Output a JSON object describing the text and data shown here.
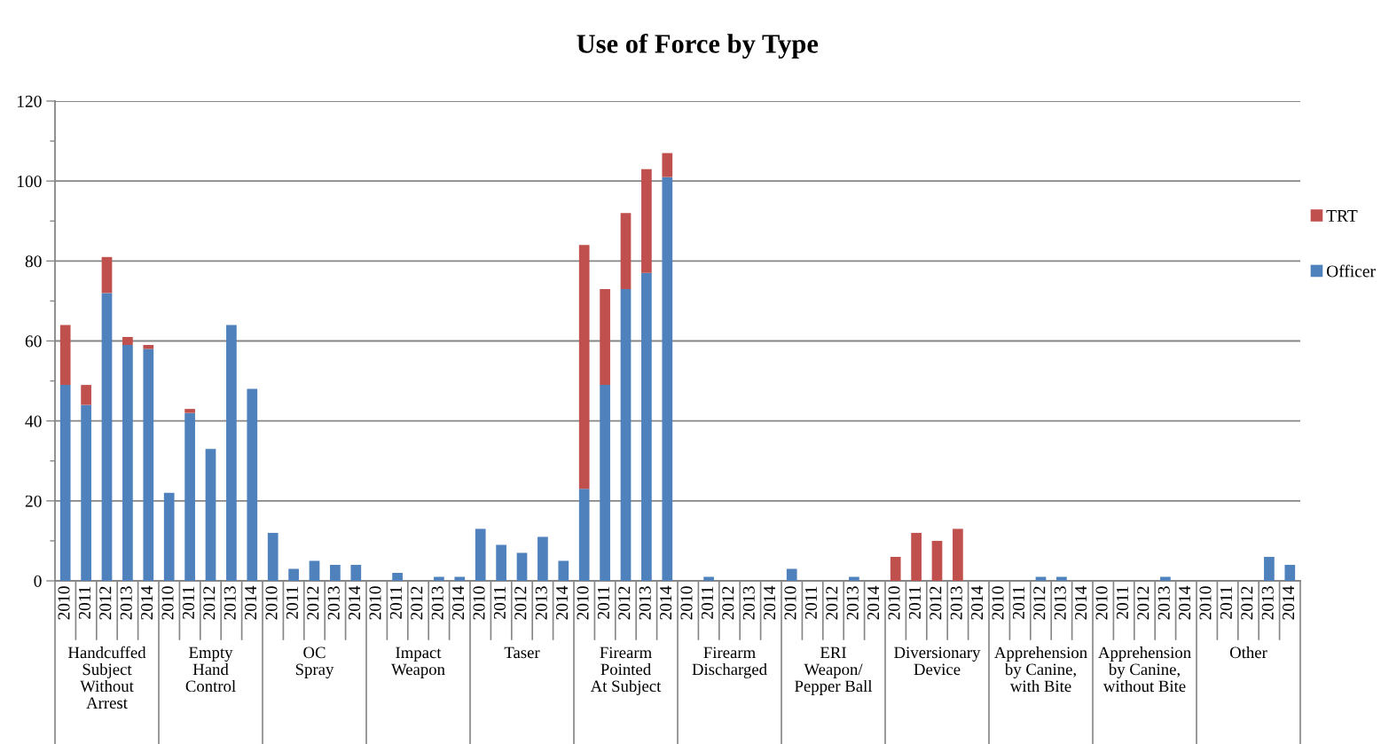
{
  "chart_data": {
    "type": "bar",
    "title": "Use of Force by Type",
    "categories": [
      "2010",
      "2011",
      "2012",
      "2013",
      "2014",
      "2010",
      "2011",
      "2012",
      "2013",
      "2014",
      "2010",
      "2011",
      "2012",
      "2013",
      "2014",
      "2010",
      "2011",
      "2012",
      "2013",
      "2014",
      "2010",
      "2011",
      "2012",
      "2013",
      "2014",
      "2010",
      "2011",
      "2012",
      "2013",
      "2014",
      "2010",
      "2011",
      "2012",
      "2013",
      "2014",
      "2010",
      "2011",
      "2012",
      "2013",
      "2014",
      "2010",
      "2011",
      "2012",
      "2013",
      "2014",
      "2010",
      "2011",
      "2012",
      "2013",
      "2014",
      "2010",
      "2011",
      "2012",
      "2013",
      "2014",
      "2010",
      "2011",
      "2012",
      "2013",
      "2014"
    ],
    "series": [
      {
        "name": "Officer",
        "color": "#4f81bd",
        "values": [
          49,
          44,
          72,
          59,
          58,
          22,
          42,
          33,
          64,
          48,
          12,
          3,
          5,
          4,
          4,
          0,
          2,
          0,
          1,
          1,
          13,
          9,
          7,
          11,
          5,
          23,
          49,
          73,
          77,
          101,
          0,
          1,
          0,
          0,
          0,
          3,
          0,
          0,
          1,
          0,
          0,
          0,
          0,
          0,
          0,
          0,
          0,
          1,
          1,
          0,
          0,
          0,
          0,
          1,
          0,
          0,
          0,
          0,
          6,
          4
        ]
      },
      {
        "name": "TRT",
        "color": "#c0504d",
        "values": [
          15,
          5,
          9,
          2,
          1,
          0,
          1,
          0,
          0,
          0,
          0,
          0,
          0,
          0,
          0,
          0,
          0,
          0,
          0,
          0,
          0,
          0,
          0,
          0,
          0,
          61,
          24,
          19,
          26,
          6,
          0,
          0,
          0,
          0,
          0,
          0,
          0,
          0,
          0,
          0,
          6,
          12,
          10,
          13,
          0,
          0,
          0,
          0,
          0,
          0,
          0,
          0,
          0,
          0,
          0,
          0,
          0,
          0,
          0,
          0
        ]
      }
    ],
    "stacked": true,
    "ylim": [
      0,
      120
    ],
    "yticks": [
      0,
      {
        "value": 10,
        "label": null
      },
      20,
      {
        "value": 30,
        "label": null
      },
      40,
      {
        "value": 50,
        "label": null
      },
      60,
      {
        "value": 70,
        "label": null
      },
      80,
      {
        "value": 90,
        "label": null
      },
      100,
      {
        "value": 110,
        "label": null
      },
      120
    ],
    "grid": "y",
    "legend": "right",
    "annotations": [
      "Handcuffed\nSubject\nWithout\nArrest",
      "Empty\nHand\nControl",
      "OC\nSpray",
      "Impact\nWeapon",
      "Taser",
      "Firearm\nPointed\nAt Subject",
      "Firearm\nDischarged",
      "ERI\nWeapon/\nPepper Ball",
      "Diversionary\nDevice",
      "Apprehension\nby Canine,\nwith Bite",
      "Apprehension\nby Canine,\nwithout Bite",
      "Other"
    ]
  }
}
